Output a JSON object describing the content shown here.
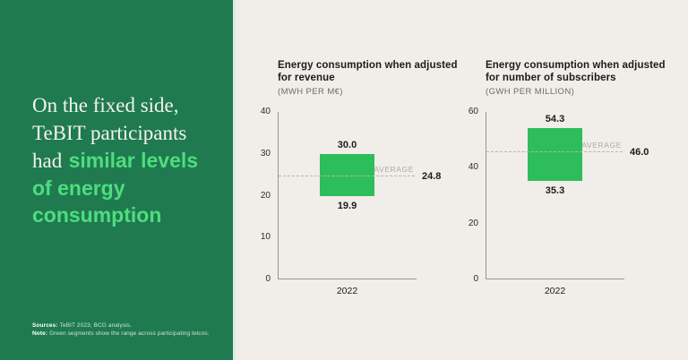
{
  "colors": {
    "panel_green": "#1f7a50",
    "panel_edge": "#dcebe0",
    "background": "#f1ede8",
    "accent_green": "#4fdd7e",
    "headline_white": "#f4f3ee",
    "sources_text": "#cfe3d6",
    "sources_label": "#ffffff",
    "bar_green": "#2dbd5b",
    "axis_gray": "#98958e",
    "dash_gray": "#b7b4ad",
    "average_caption_gray": "#aeaba4",
    "title_dark": "#1c1c1c",
    "unit_gray": "#6e6c68",
    "tick_dark": "#2e2c28"
  },
  "left_panel": {
    "headline": {
      "line1": "On the fixed side,",
      "line2": "TeBIT participants",
      "line3_white": "had",
      "line3_green": "similar levels",
      "line4": "of energy",
      "line5": "consumption"
    },
    "sources_label": "Sources:",
    "sources_text": "TeBIT 2023; BCG analysis.",
    "note_label": "Note:",
    "note_text": "Green segments show the range across participating telcos."
  },
  "chart_data": [
    {
      "type": "bar",
      "subtype": "floating-range-bar",
      "title_lines": [
        "Energy consumption when adjusted",
        "for revenue"
      ],
      "unit": "(MWH PER M€)",
      "categories": [
        "2022"
      ],
      "range": {
        "low": 19.9,
        "high": 30.0
      },
      "average": 24.8,
      "average_label": "AVERAGE",
      "ylim": [
        0,
        40
      ],
      "yticks": [
        0,
        10,
        20,
        30,
        40
      ],
      "grid": false,
      "bar_color": "#2dbd5b"
    },
    {
      "type": "bar",
      "subtype": "floating-range-bar",
      "title_lines": [
        "Energy consumption when adjusted",
        "for number of subscribers"
      ],
      "unit": "(GWH PER MILLION)",
      "categories": [
        "2022"
      ],
      "range": {
        "low": 35.3,
        "high": 54.3
      },
      "average": 46.0,
      "average_label": "AVERAGE",
      "ylim": [
        0,
        60
      ],
      "yticks": [
        0,
        20,
        40,
        60
      ],
      "grid": false,
      "bar_color": "#2dbd5b"
    }
  ]
}
